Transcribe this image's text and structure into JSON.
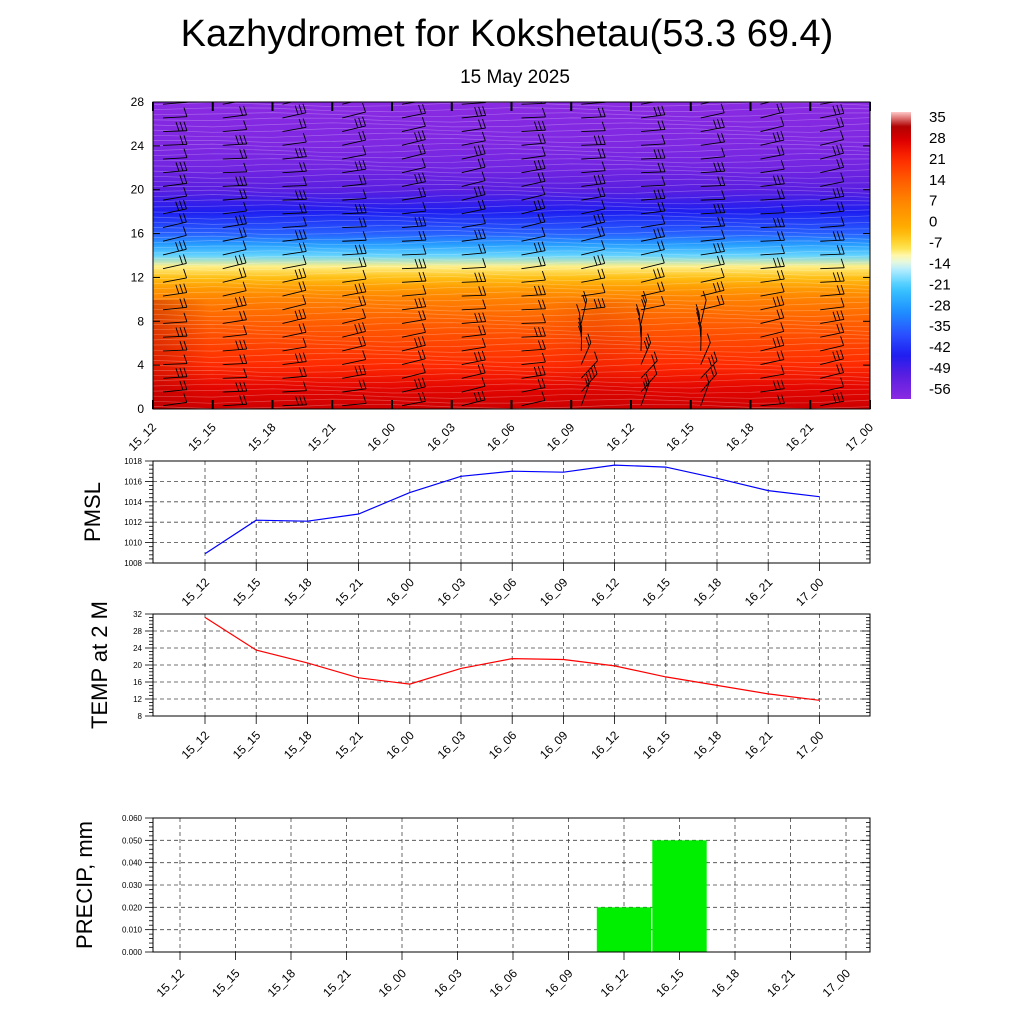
{
  "title": "Kazhydromet for Kokshetau(53.3 69.4)",
  "subtitle": "15 May 2025",
  "times": [
    "15_12",
    "15_15",
    "15_18",
    "15_21",
    "16_00",
    "16_03",
    "16_06",
    "16_09",
    "16_12",
    "16_15",
    "16_18",
    "16_21",
    "17_00"
  ],
  "chart_data": [
    {
      "type": "heatmap",
      "name": "upper-air",
      "x": [
        "15_12",
        "15_15",
        "15_18",
        "15_21",
        "16_00",
        "16_03",
        "16_06",
        "16_09",
        "16_12",
        "16_15",
        "16_18",
        "16_21",
        "17_00"
      ],
      "ylim": [
        0,
        28
      ],
      "yticks": [
        0,
        4,
        8,
        12,
        16,
        20,
        24,
        28
      ],
      "colorbar": {
        "labels": [
          35,
          28,
          21,
          14,
          7,
          0,
          -7,
          -14,
          -21,
          -28,
          -35,
          -42,
          -49,
          -56
        ],
        "range": [
          -60,
          38
        ]
      },
      "temperature_profile": {
        "levels": [
          0,
          2,
          4,
          6,
          8,
          10,
          11,
          12,
          13,
          14,
          15,
          16,
          18,
          20,
          22,
          24,
          26,
          28
        ],
        "values": [
          30,
          27,
          22,
          18,
          14,
          8,
          3,
          -4,
          -10,
          -20,
          -28,
          -36,
          -45,
          -52,
          -56,
          -58,
          -59,
          -60
        ]
      },
      "wind_barbs": "yes"
    },
    {
      "type": "line",
      "name": "pmsl",
      "ylabel": "PMSL",
      "x": [
        "15_12",
        "15_15",
        "15_18",
        "15_21",
        "16_00",
        "16_03",
        "16_06",
        "16_09",
        "16_12",
        "16_15",
        "16_18",
        "16_21",
        "17_00"
      ],
      "values": [
        1008.9,
        1012.2,
        1012.1,
        1012.8,
        1014.9,
        1016.5,
        1017.0,
        1016.9,
        1017.6,
        1017.4,
        1016.3,
        1015.1,
        1014.5
      ],
      "ylim": [
        1008,
        1018
      ],
      "yticks": [
        1008,
        1010,
        1012,
        1014,
        1016,
        1018
      ],
      "color": "#0000ff",
      "grid": true
    },
    {
      "type": "line",
      "name": "temp2m",
      "ylabel": "TEMP at 2 M",
      "x": [
        "15_12",
        "15_15",
        "15_18",
        "15_21",
        "16_00",
        "16_03",
        "16_06",
        "16_09",
        "16_12",
        "16_15",
        "16_18",
        "16_21",
        "17_00"
      ],
      "values": [
        31.2,
        23.5,
        20.5,
        17.0,
        15.5,
        19.2,
        21.5,
        21.3,
        19.8,
        17.2,
        15.2,
        13.2,
        11.7
      ],
      "ylim": [
        8,
        32
      ],
      "yticks": [
        8,
        12,
        16,
        20,
        24,
        28,
        32
      ],
      "color": "#ff0000",
      "grid": true
    },
    {
      "type": "bar",
      "name": "precip",
      "ylabel": "PRECIP, mm",
      "categories": [
        "15_12",
        "15_15",
        "15_18",
        "15_21",
        "16_00",
        "16_03",
        "16_06",
        "16_09",
        "16_12",
        "16_15",
        "16_18",
        "16_21",
        "17_00"
      ],
      "values": [
        0,
        0,
        0,
        0,
        0,
        0,
        0,
        0,
        0.02,
        0.05,
        0,
        0,
        0
      ],
      "ylim": [
        0,
        0.06
      ],
      "yticks": [
        "0.000",
        "0.010",
        "0.020",
        "0.030",
        "0.040",
        "0.050",
        "0.060"
      ],
      "color": "#00ee00",
      "grid": true
    }
  ]
}
